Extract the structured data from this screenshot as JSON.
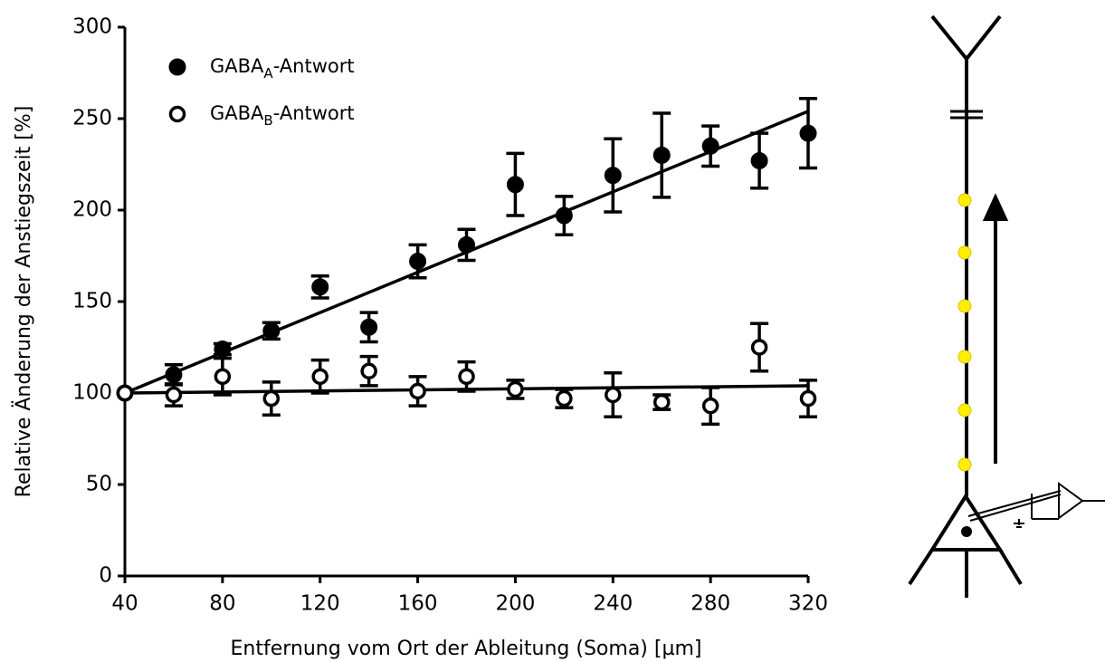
{
  "chart_data": {
    "type": "scatter",
    "xlabel": "Entfernung vom Ort der Ableitung (Soma) [µm]",
    "ylabel": "Relative Änderung der Anstiegszeit [%]",
    "xlim": [
      40,
      320
    ],
    "ylim": [
      0,
      300
    ],
    "xticks": [
      40,
      80,
      120,
      160,
      200,
      240,
      280,
      320
    ],
    "yticks": [
      0,
      50,
      100,
      150,
      200,
      250,
      300
    ],
    "series": [
      {
        "name": [
          "GABA",
          "A",
          "-Antwort"
        ],
        "color": "#000000",
        "marker": "filled",
        "x": [
          40,
          60,
          80,
          100,
          120,
          140,
          160,
          180,
          200,
          220,
          240,
          260,
          280,
          300,
          320
        ],
        "values": [
          100,
          110,
          124,
          134,
          158,
          136,
          172,
          181,
          214,
          197,
          219,
          230,
          235,
          227,
          242
        ],
        "errors": [
          0,
          5.5,
          3,
          4.5,
          6,
          8,
          9,
          8.5,
          17,
          10.5,
          20,
          23,
          11,
          15,
          19
        ],
        "fit": {
          "x": [
            40,
            320
          ],
          "y": [
            100,
            254
          ]
        }
      },
      {
        "name": [
          "GABA",
          "B",
          "-Antwort"
        ],
        "color": "#000000",
        "marker": "open",
        "x": [
          40,
          60,
          80,
          100,
          120,
          140,
          160,
          180,
          200,
          220,
          240,
          260,
          280,
          300,
          320
        ],
        "values": [
          100,
          99,
          109,
          97,
          109,
          112,
          101,
          109,
          102,
          97,
          99,
          95,
          93,
          125,
          97
        ],
        "errors": [
          0,
          6,
          10,
          9,
          9,
          8,
          8,
          8,
          5,
          5,
          12,
          4,
          10,
          13,
          10
        ],
        "fit": {
          "x": [
            40,
            320
          ],
          "y": [
            100,
            104
          ]
        }
      }
    ]
  }
}
